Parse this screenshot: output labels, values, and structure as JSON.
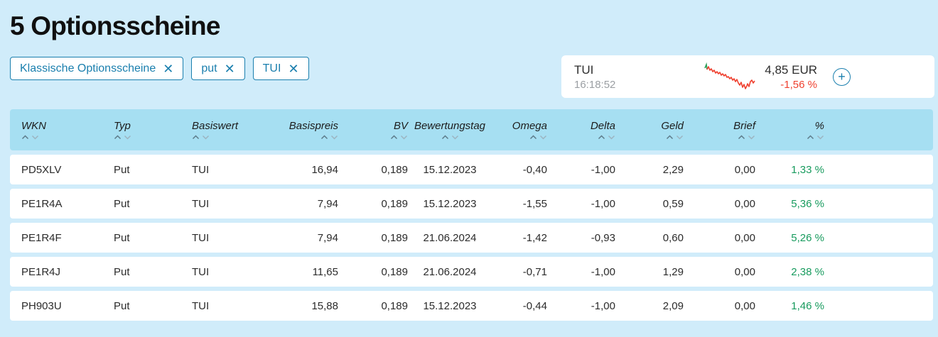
{
  "page": {
    "title": "5 Optionsscheine"
  },
  "filters": [
    {
      "label": "Klassische Optionsscheine"
    },
    {
      "label": "put"
    },
    {
      "label": "TUI"
    }
  ],
  "quote": {
    "name": "TUI",
    "time": "16:18:52",
    "price": "4,85 EUR",
    "change": "-1,56 %"
  },
  "colors": {
    "accent_blue": "#1a7fae",
    "positive_green": "#189b5e",
    "negative_red": "#ef4130",
    "header_bg": "#a6dff2",
    "page_bg": "#d0ecfa",
    "corner_orange": "#e8860f"
  },
  "icons": {
    "remove_filter": "close-icon",
    "add_quote": "plus-circle-icon",
    "sort": "chevron-up-down-icons"
  },
  "table": {
    "columns": [
      {
        "label": "WKN",
        "field": "wkn",
        "align": "left"
      },
      {
        "label": "Typ",
        "field": "typ",
        "align": "left"
      },
      {
        "label": "Basiswert",
        "field": "basiswert",
        "align": "left"
      },
      {
        "label": "Basispreis",
        "field": "basispreis",
        "align": "right"
      },
      {
        "label": "BV",
        "field": "bv",
        "align": "right"
      },
      {
        "label": "Bewertungstag",
        "field": "bewertungstag",
        "align": "center"
      },
      {
        "label": "Omega",
        "field": "omega",
        "align": "right"
      },
      {
        "label": "Delta",
        "field": "delta",
        "align": "right"
      },
      {
        "label": "Geld",
        "field": "geld",
        "align": "right"
      },
      {
        "label": "Brief",
        "field": "brief",
        "align": "right"
      },
      {
        "label": "%",
        "field": "pct",
        "align": "right",
        "color": "green"
      }
    ],
    "rows": [
      {
        "wkn": "PD5XLV",
        "typ": "Put",
        "basiswert": "TUI",
        "basispreis": "16,94",
        "bv": "0,189",
        "bewertungstag": "15.12.2023",
        "omega": "-0,40",
        "delta": "-1,00",
        "geld": "2,29",
        "brief": "0,00",
        "pct": "1,33 %"
      },
      {
        "wkn": "PE1R4A",
        "typ": "Put",
        "basiswert": "TUI",
        "basispreis": "7,94",
        "bv": "0,189",
        "bewertungstag": "15.12.2023",
        "omega": "-1,55",
        "delta": "-1,00",
        "geld": "0,59",
        "brief": "0,00",
        "pct": "5,36 %"
      },
      {
        "wkn": "PE1R4F",
        "typ": "Put",
        "basiswert": "TUI",
        "basispreis": "7,94",
        "bv": "0,189",
        "bewertungstag": "21.06.2024",
        "omega": "-1,42",
        "delta": "-0,93",
        "geld": "0,60",
        "brief": "0,00",
        "pct": "5,26 %"
      },
      {
        "wkn": "PE1R4J",
        "typ": "Put",
        "basiswert": "TUI",
        "basispreis": "11,65",
        "bv": "0,189",
        "bewertungstag": "21.06.2024",
        "omega": "-0,71",
        "delta": "-1,00",
        "geld": "1,29",
        "brief": "0,00",
        "pct": "2,38 %"
      },
      {
        "wkn": "PH903U",
        "typ": "Put",
        "basiswert": "TUI",
        "basispreis": "15,88",
        "bv": "0,189",
        "bewertungstag": "15.12.2023",
        "omega": "-0,44",
        "delta": "-1,00",
        "geld": "2,09",
        "brief": "0,00",
        "pct": "1,46 %"
      }
    ]
  }
}
